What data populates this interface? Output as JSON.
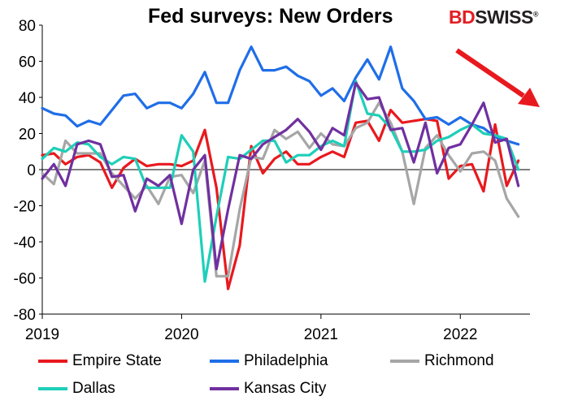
{
  "title": "Fed surveys: New Orders",
  "brand": {
    "part1": "BD",
    "part2": "SWISS",
    "mark": "®"
  },
  "chart_data": {
    "type": "line",
    "title": "Fed surveys: New Orders",
    "xlabel": "",
    "ylabel": "",
    "ylim": [
      -80,
      80
    ],
    "yticks": [
      -80,
      -60,
      -40,
      -20,
      0,
      20,
      40,
      60,
      80
    ],
    "xlim": [
      2019.0,
      2022.5
    ],
    "xticks": [
      2019,
      2020,
      2021,
      2022
    ],
    "xtick_labels": [
      "2019",
      "2020",
      "2021",
      "2022"
    ],
    "legend_position": "bottom",
    "annotation": "red arrow pointing down-right (top-right corner)",
    "series": [
      {
        "name": "Empire State",
        "color": "#e8191e",
        "values": [
          8,
          9,
          3,
          7,
          8,
          4,
          -10,
          1,
          6,
          2,
          3,
          3,
          2,
          5,
          22,
          -10,
          -66,
          -42,
          13,
          -2,
          6,
          10,
          3,
          3,
          7,
          10,
          7,
          26,
          27,
          16,
          33,
          26,
          27,
          28,
          27,
          -5,
          2,
          3,
          -12,
          25,
          -9,
          5
        ]
      },
      {
        "name": "Philadelphia",
        "color": "#1f6ee8",
        "values": [
          34,
          31,
          30,
          24,
          27,
          25,
          33,
          41,
          42,
          34,
          37,
          37,
          34,
          42,
          54,
          37,
          37,
          55,
          68,
          55,
          55,
          57,
          52,
          49,
          41,
          45,
          38,
          51,
          61,
          50,
          68,
          45,
          38,
          28,
          29,
          25,
          29,
          25,
          23,
          18,
          16,
          14
        ]
      },
      {
        "name": "Richmond",
        "color": "#a6a6a6",
        "values": [
          -2,
          -8,
          16,
          9,
          9,
          9,
          -2,
          -9,
          -16,
          -9,
          -19,
          -4,
          -3,
          -13,
          5,
          -59,
          -59,
          -22,
          7,
          6,
          22,
          17,
          21,
          12,
          20,
          14,
          13,
          23,
          26,
          37,
          26,
          10,
          -19,
          12,
          19,
          8,
          -1,
          9,
          10,
          5,
          -16,
          -26
        ]
      },
      {
        "name": "Dallas",
        "color": "#1ecfb8",
        "values": [
          6,
          12,
          10,
          15,
          14,
          7,
          3,
          7,
          6,
          -10,
          -10,
          -10,
          19,
          10,
          -62,
          -26,
          7,
          6,
          11,
          16,
          16,
          4,
          8,
          8,
          13,
          16,
          13,
          49,
          31,
          30,
          23,
          10,
          10,
          11,
          16,
          18,
          22,
          25,
          20,
          19,
          17,
          0
        ]
      },
      {
        "name": "Kansas City",
        "color": "#7030a0",
        "values": [
          -5,
          3,
          -9,
          14,
          16,
          14,
          -4,
          -3,
          -23,
          -5,
          -9,
          -3,
          -30,
          0,
          8,
          -55,
          -22,
          8,
          6,
          14,
          18,
          22,
          28,
          21,
          11,
          23,
          19,
          48,
          39,
          40,
          22,
          23,
          4,
          26,
          -2,
          12,
          14,
          25,
          37,
          15,
          17,
          -9
        ]
      }
    ]
  }
}
